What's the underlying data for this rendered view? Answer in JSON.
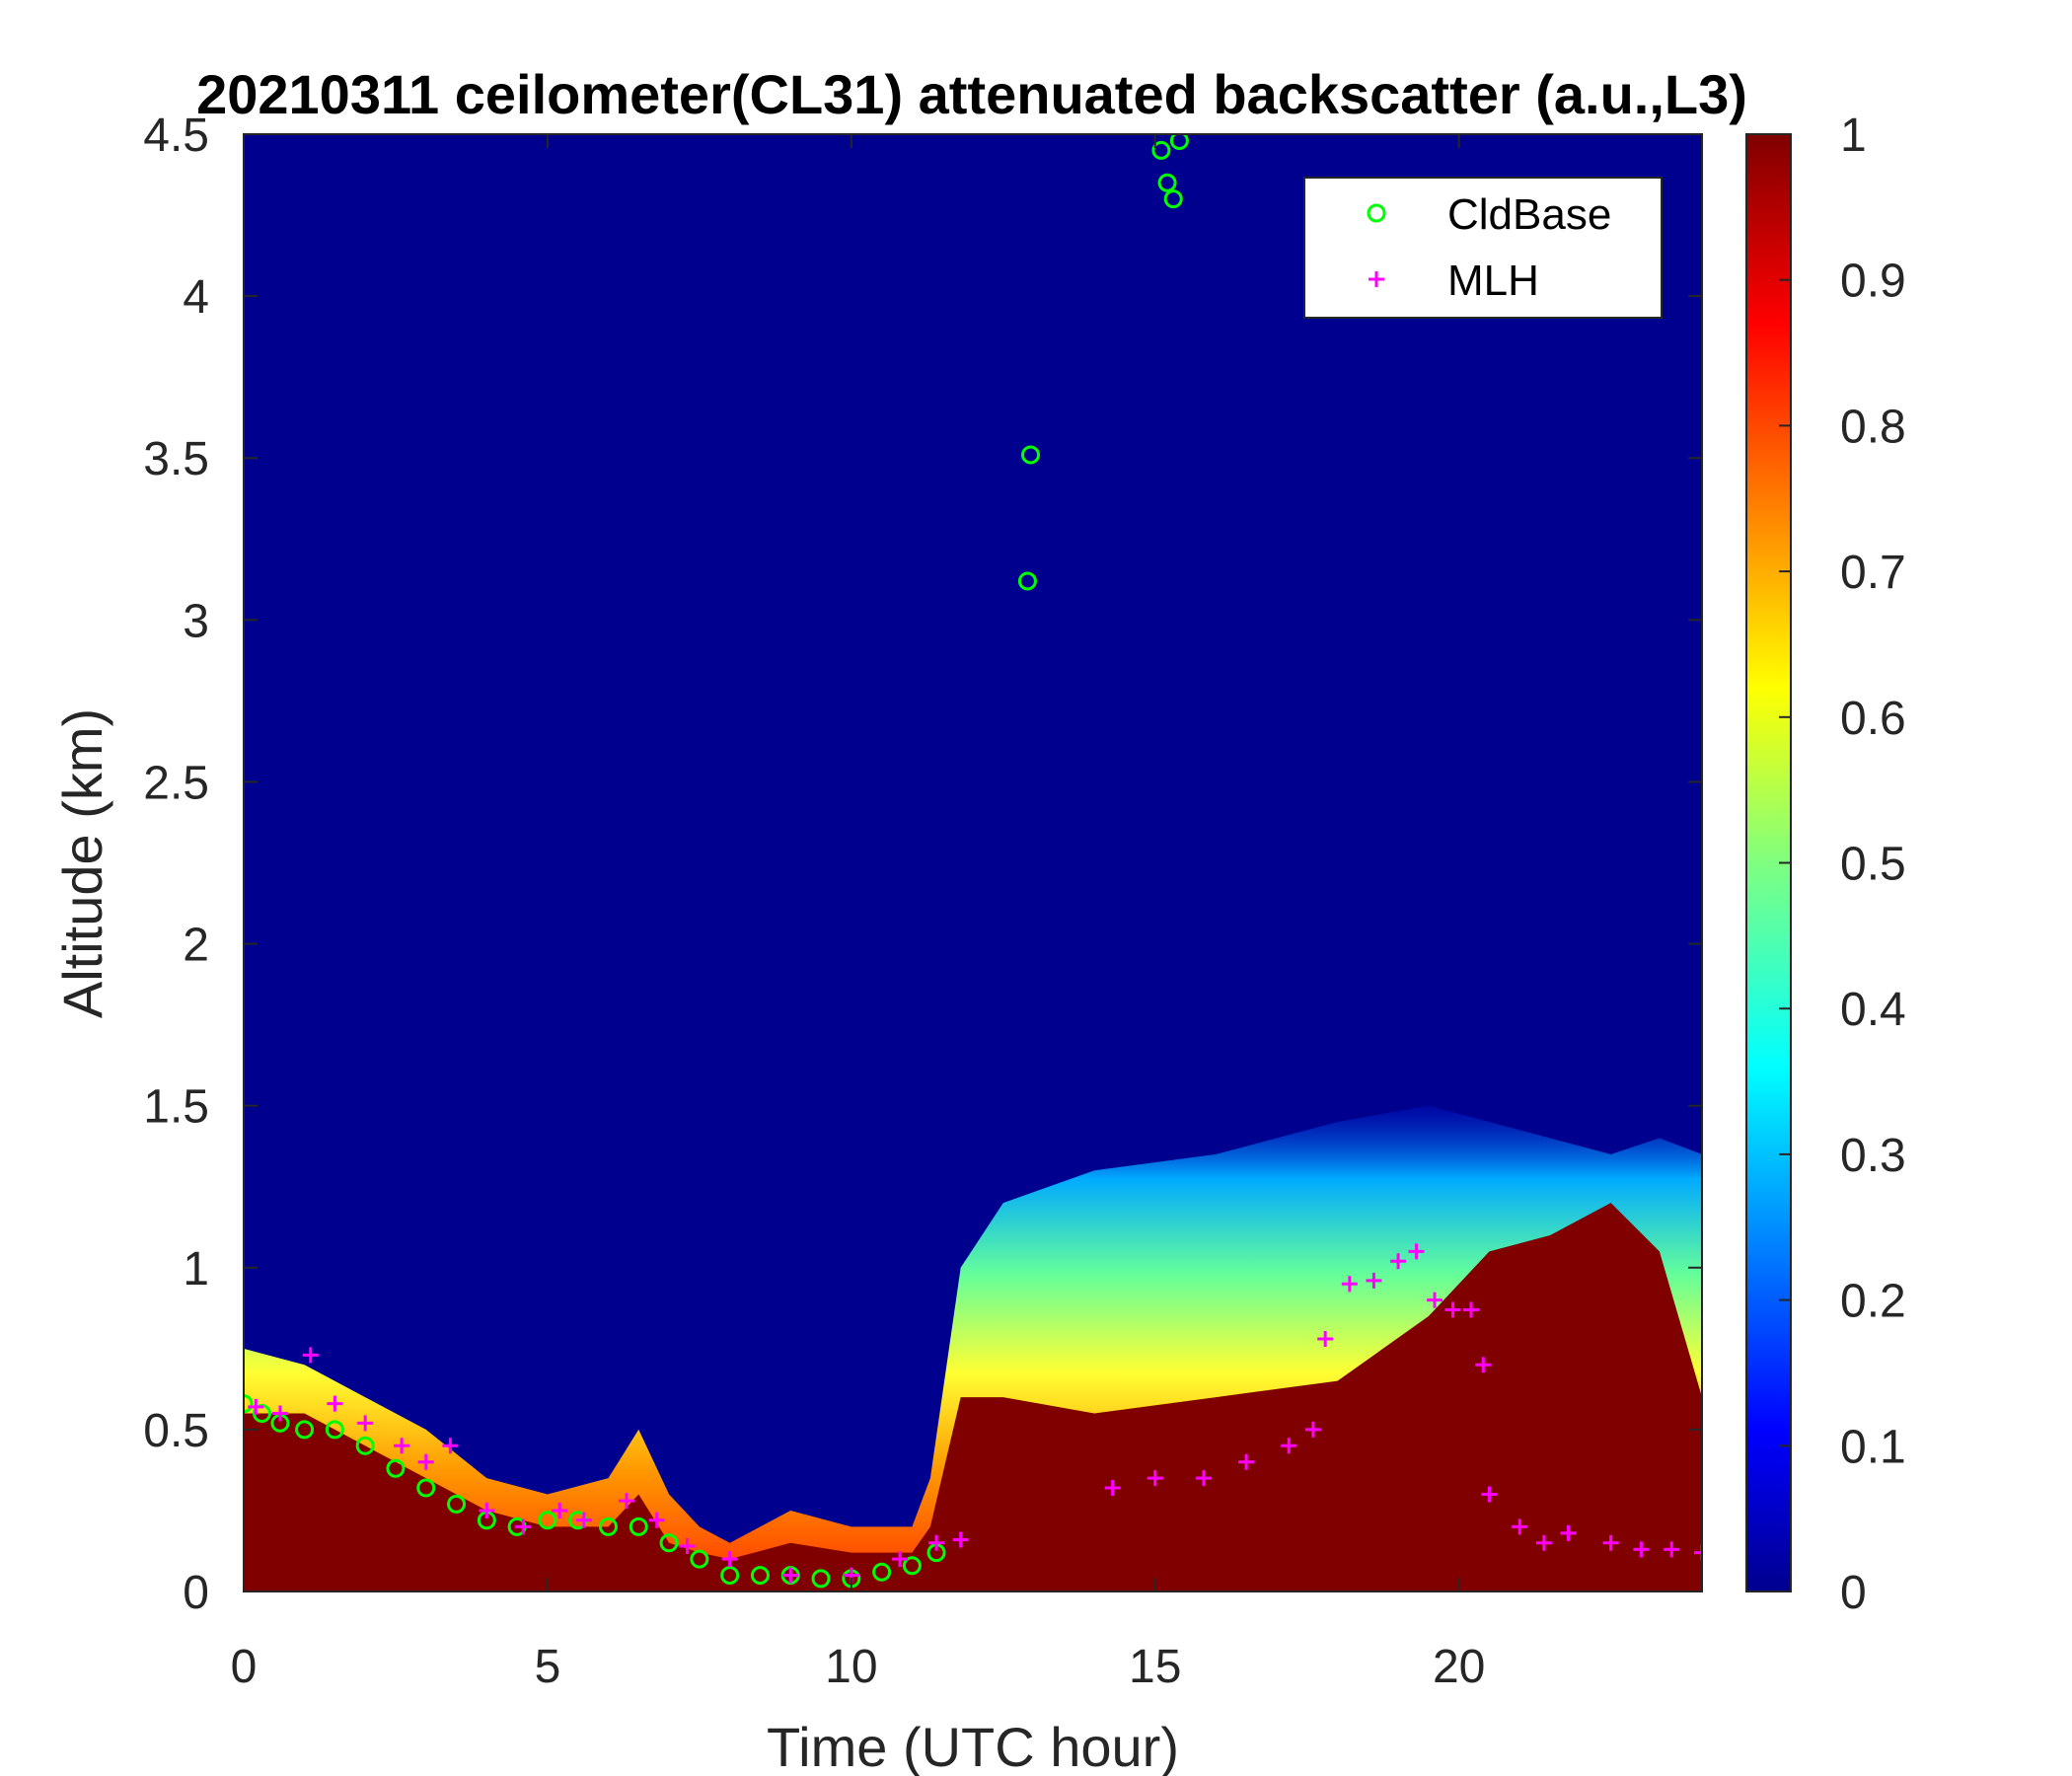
{
  "chart_data": {
    "type": "heatmap",
    "title": "20210311 ceilometer(CL31) attenuated backscatter (a.u.,L3)",
    "xlabel": "Time (UTC hour)",
    "ylabel": "Altitude (km)",
    "xlim": [
      0,
      24
    ],
    "ylim": [
      0,
      4.5
    ],
    "x_ticks": [
      0,
      5,
      10,
      15,
      20
    ],
    "y_ticks": [
      0,
      0.5,
      1,
      1.5,
      2,
      2.5,
      3,
      3.5,
      4,
      4.5
    ],
    "colorbar": {
      "range": [
        0,
        1
      ],
      "ticks": [
        0,
        0.1,
        0.2,
        0.3,
        0.4,
        0.5,
        0.6,
        0.7,
        0.8,
        0.9,
        1
      ],
      "colormap": "jet"
    },
    "legend": {
      "placement": "top-right",
      "entries": [
        "CldBase",
        "MLH"
      ]
    },
    "colors": {
      "cldbase": "#00ff00",
      "mlh": "#ff00ff",
      "background": "#00008f",
      "saturated": "#800000"
    },
    "aerosol_layer": {
      "time": [
        0,
        1,
        2,
        3,
        4,
        5,
        6,
        6.5,
        7,
        7.5,
        8,
        9,
        10,
        11,
        11.3,
        11.8,
        12.5,
        14,
        16,
        18,
        19.5,
        20.5,
        21.5,
        22.5,
        23.3,
        24
      ],
      "top_km": [
        0.75,
        0.7,
        0.6,
        0.5,
        0.35,
        0.3,
        0.35,
        0.5,
        0.3,
        0.2,
        0.15,
        0.25,
        0.2,
        0.2,
        0.35,
        1.0,
        1.2,
        1.3,
        1.35,
        1.45,
        1.5,
        1.45,
        1.4,
        1.35,
        1.4,
        1.35
      ],
      "saturated_top_km": [
        0.55,
        0.55,
        0.45,
        0.35,
        0.25,
        0.2,
        0.2,
        0.3,
        0.15,
        0.12,
        0.1,
        0.15,
        0.12,
        0.12,
        0.2,
        0.6,
        0.6,
        0.55,
        0.6,
        0.65,
        0.85,
        1.05,
        1.1,
        1.2,
        1.05,
        0.6
      ]
    },
    "series": [
      {
        "name": "CldBase",
        "marker": "circle",
        "x": [
          0,
          0.3,
          0.6,
          1.0,
          1.5,
          2.0,
          2.5,
          3.0,
          3.5,
          4.0,
          4.5,
          5.0,
          5.5,
          6.0,
          6.5,
          7.0,
          7.5,
          8.0,
          8.5,
          9.0,
          9.5,
          10.0,
          10.5,
          11.0,
          11.4,
          12.9,
          12.95,
          15.1,
          15.2,
          15.3,
          15.4
        ],
        "y": [
          0.58,
          0.55,
          0.52,
          0.5,
          0.5,
          0.45,
          0.38,
          0.32,
          0.27,
          0.22,
          0.2,
          0.22,
          0.22,
          0.2,
          0.2,
          0.15,
          0.1,
          0.05,
          0.05,
          0.05,
          0.04,
          0.04,
          0.06,
          0.08,
          0.12,
          3.12,
          3.51,
          4.45,
          4.35,
          4.3,
          4.48
        ]
      },
      {
        "name": "MLH",
        "marker": "plus",
        "x": [
          0.2,
          0.6,
          1.1,
          1.5,
          2.0,
          2.6,
          3.0,
          3.4,
          4.0,
          4.6,
          5.2,
          5.6,
          6.3,
          6.8,
          7.3,
          8.0,
          9.0,
          10.0,
          10.8,
          11.4,
          11.8,
          14.3,
          15.0,
          15.8,
          16.5,
          17.2,
          17.6,
          17.8,
          18.2,
          18.6,
          19.0,
          19.3,
          19.6,
          19.9,
          20.2,
          20.4,
          20.5,
          21.0,
          21.4,
          21.8,
          22.5,
          23.0,
          23.5,
          24.0
        ],
        "y": [
          0.57,
          0.55,
          0.73,
          0.58,
          0.52,
          0.45,
          0.4,
          0.45,
          0.25,
          0.2,
          0.25,
          0.22,
          0.28,
          0.22,
          0.14,
          0.1,
          0.05,
          0.05,
          0.1,
          0.15,
          0.16,
          0.32,
          0.35,
          0.35,
          0.4,
          0.45,
          0.5,
          0.78,
          0.95,
          0.96,
          1.02,
          1.05,
          0.9,
          0.87,
          0.87,
          0.7,
          0.3,
          0.2,
          0.15,
          0.18,
          0.15,
          0.13,
          0.13,
          0.12
        ]
      }
    ]
  }
}
